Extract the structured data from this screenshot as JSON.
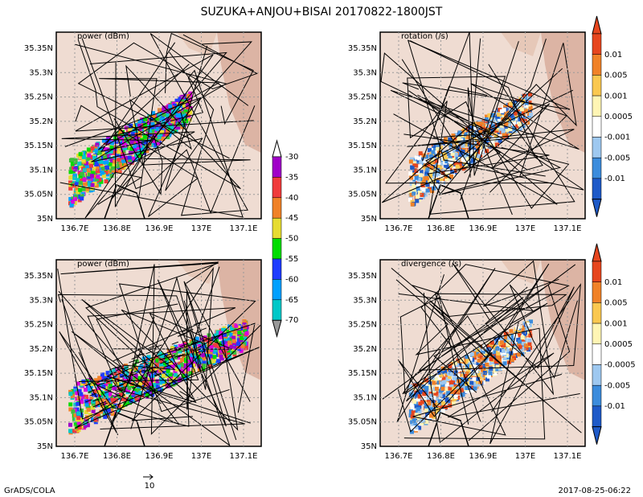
{
  "title": "SUZUKA+ANJOU+BISAI  20170822-1800JST",
  "panels": [
    {
      "label": "power (dBm)"
    },
    {
      "label": "rotation (/s)"
    },
    {
      "label": "power (dBm)"
    },
    {
      "label": "divergence (/s)"
    }
  ],
  "lat_ticks": [
    "35.35N",
    "35.3N",
    "35.25N",
    "35.2N",
    "35.15N",
    "35.1N",
    "35.05N",
    "35N"
  ],
  "lon_ticks": [
    "136.7E",
    "136.8E",
    "136.9E",
    "137E",
    "137.1E"
  ],
  "power_colorbar": [
    "-30",
    "-35",
    "-40",
    "-45",
    "-50",
    "-55",
    "-60",
    "-65",
    "-70"
  ],
  "rotation_colorbar": [
    "0.01",
    "0.005",
    "0.001",
    "0.0005",
    "-0.001",
    "-0.005",
    "-0.01"
  ],
  "divergence_colorbar": [
    "0.01",
    "0.005",
    "0.001",
    "0.0005",
    "-0.0005",
    "-0.005",
    "-0.01"
  ],
  "vector_scale": "10",
  "footer_left": "GrADS/COLA",
  "footer_right": "2017-08-25-06:22"
}
